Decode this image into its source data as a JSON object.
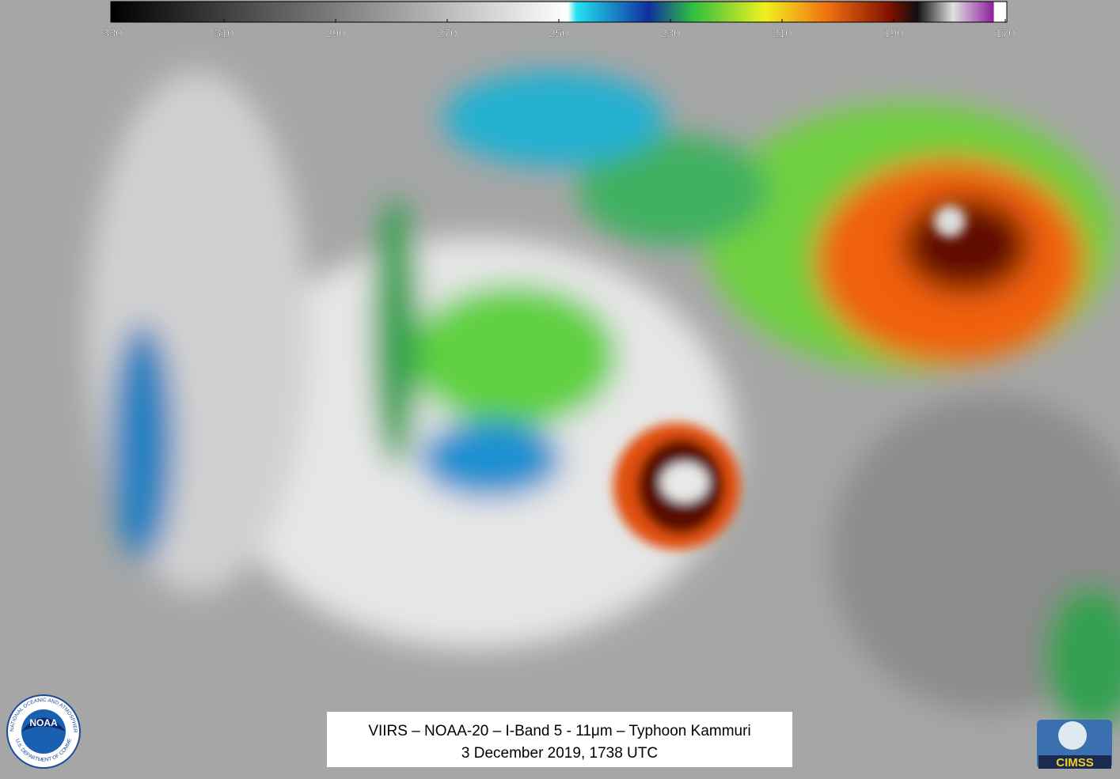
{
  "colorbar": {
    "range": [
      330,
      170
    ],
    "ticks": [
      330,
      310,
      290,
      270,
      250,
      230,
      210,
      190,
      170
    ]
  },
  "caption": {
    "line1": "VIIRS – NOAA-20 – I-Band 5 - 11μm – Typhoon Kammuri",
    "line2": "3 December 2019, 1738 UTC"
  },
  "logos": {
    "noaa": "NOAA",
    "noaa_ring_top": "NATIONAL OCEANIC AND ATMOSPHERIC ADMINISTRATION",
    "noaa_ring_bottom": "U.S. DEPARTMENT OF COMMERCE",
    "cimss": "CIMSS"
  }
}
